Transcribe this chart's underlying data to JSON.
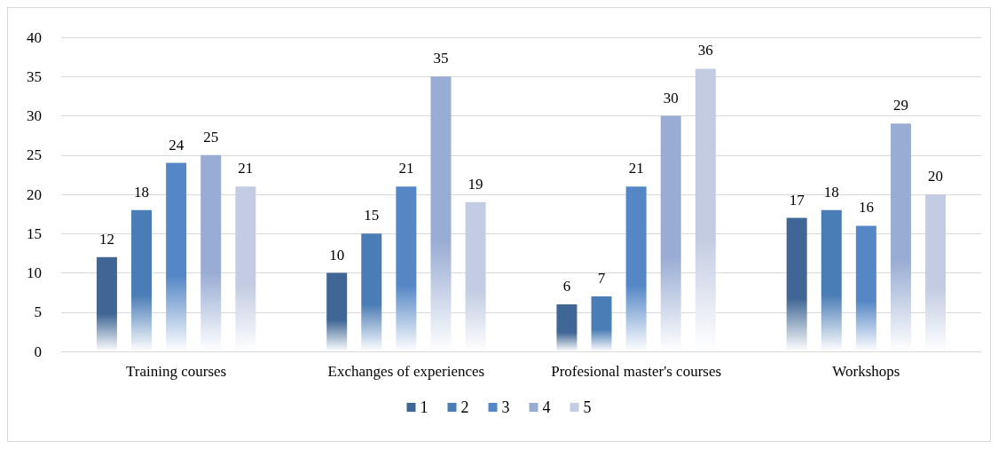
{
  "chart_data": {
    "type": "bar",
    "categories": [
      "Training courses",
      "Exchanges of experiences",
      "Profesional master's courses",
      "Workshops"
    ],
    "series": [
      {
        "name": "1",
        "color": "#3f6694",
        "values": [
          12,
          10,
          6,
          17
        ]
      },
      {
        "name": "2",
        "color": "#4a7cb5",
        "values": [
          18,
          15,
          7,
          18
        ]
      },
      {
        "name": "3",
        "color": "#5587c6",
        "values": [
          24,
          21,
          21,
          16
        ]
      },
      {
        "name": "4",
        "color": "#99acd3",
        "values": [
          25,
          35,
          30,
          29
        ]
      },
      {
        "name": "5",
        "color": "#c3cce2",
        "values": [
          21,
          19,
          36,
          20
        ]
      }
    ],
    "ylim": [
      0,
      40
    ],
    "yticks": [
      0,
      5,
      10,
      15,
      20,
      25,
      30,
      35,
      40
    ],
    "grid": "y",
    "legend": "bottom",
    "data_labels": true
  }
}
